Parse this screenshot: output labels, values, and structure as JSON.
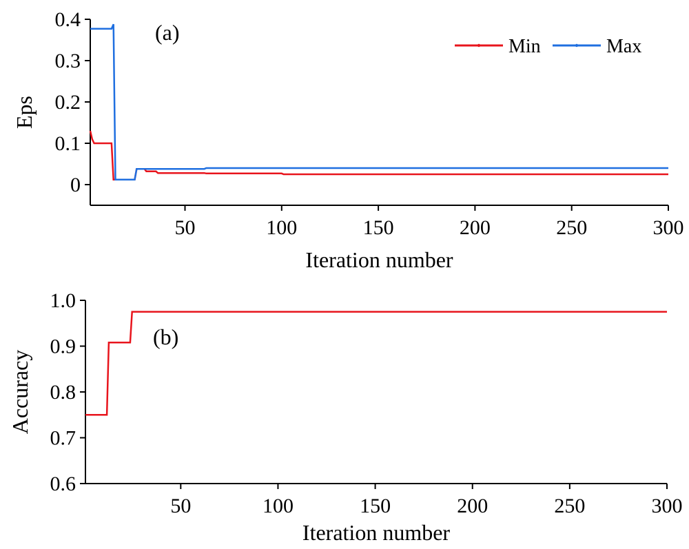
{
  "chart_data": [
    {
      "type": "line",
      "panel_label": "(a)",
      "xlabel": "Iteration number",
      "ylabel": "Eps",
      "xlim": [
        1,
        300
      ],
      "ylim": [
        -0.05,
        0.4
      ],
      "xticks": [
        50,
        100,
        150,
        200,
        250,
        300
      ],
      "xtick_labels": [
        "50",
        "100",
        "150",
        "200",
        "250",
        "300"
      ],
      "yticks": [
        0,
        0.1,
        0.2,
        0.3,
        0.4
      ],
      "ytick_labels": [
        "0",
        "0.1",
        "0.2",
        "0.3",
        "0.4"
      ],
      "grid": false,
      "legend": "top-right",
      "series": [
        {
          "name": "Min",
          "color": "#e8141c",
          "x": [
            1,
            2,
            3,
            12,
            13,
            24,
            25,
            29,
            30,
            35,
            36,
            60,
            61,
            100,
            101,
            300
          ],
          "y": [
            0.13,
            0.11,
            0.1,
            0.1,
            0.012,
            0.012,
            0.038,
            0.038,
            0.032,
            0.032,
            0.028,
            0.028,
            0.027,
            0.027,
            0.025,
            0.025
          ]
        },
        {
          "name": "Max",
          "color": "#1f6fe0",
          "x": [
            1,
            12,
            13,
            14,
            24,
            25,
            60,
            61,
            300
          ],
          "y": [
            0.377,
            0.377,
            0.388,
            0.012,
            0.012,
            0.038,
            0.038,
            0.04,
            0.04
          ]
        }
      ]
    },
    {
      "type": "line",
      "panel_label": "(b)",
      "xlabel": "Iteration number",
      "ylabel": "Accuracy",
      "xlim": [
        1,
        300
      ],
      "ylim": [
        0.6,
        1.0
      ],
      "xticks": [
        50,
        100,
        150,
        200,
        250,
        300
      ],
      "xtick_labels": [
        "50",
        "100",
        "150",
        "200",
        "250",
        "300"
      ],
      "yticks": [
        0.6,
        0.7,
        0.8,
        0.9,
        1.0
      ],
      "ytick_labels": [
        "0.6",
        "0.7",
        "0.8",
        "0.9",
        "1.0"
      ],
      "grid": false,
      "series": [
        {
          "color": "#e8141c",
          "x": [
            1,
            12,
            13,
            24,
            25,
            300
          ],
          "y": [
            0.75,
            0.75,
            0.908,
            0.908,
            0.975,
            0.975
          ]
        }
      ]
    }
  ]
}
